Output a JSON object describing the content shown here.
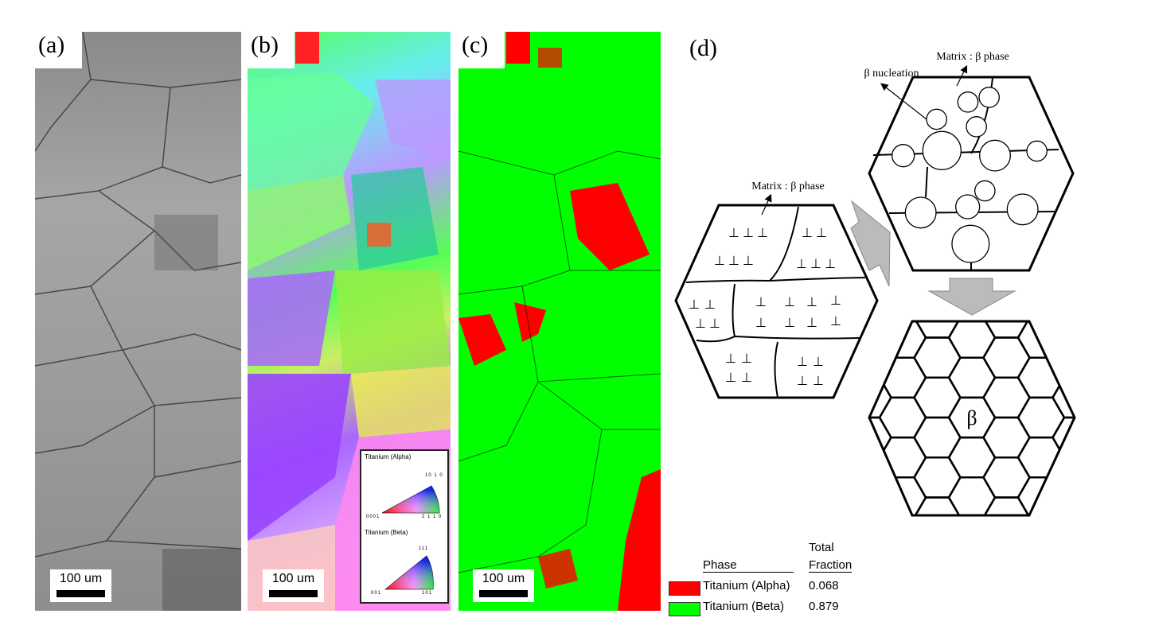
{
  "panels": {
    "a": {
      "label": "(a)",
      "scale": "100 um"
    },
    "b": {
      "label": "(b)",
      "scale": "100 um"
    },
    "c": {
      "label": "(c)",
      "scale": "100 um"
    },
    "d": {
      "label": "(d)"
    }
  },
  "ipf_legend": {
    "alpha": {
      "title": "Titanium (Alpha)",
      "top": "10 1 0",
      "left": "0001",
      "right": "2 1 1 0"
    },
    "beta": {
      "title": "Titanium (Beta)",
      "top": "111",
      "left": "001",
      "right": "101"
    }
  },
  "phase_legend": {
    "header_phase": "Phase",
    "header_fraction_1": "Total",
    "header_fraction_2": "Fraction",
    "rows": [
      {
        "name": "Titanium (Alpha)",
        "fraction": "0.068",
        "color": "#ff0000"
      },
      {
        "name": "Titanium (Beta)",
        "fraction": "0.879",
        "color": "#00ff00"
      }
    ]
  },
  "schematic": {
    "matrix_left": "Matrix : β phase",
    "matrix_top": "Matrix : β phase",
    "nucleation": "β nucleation",
    "beta_center": "β",
    "dislocation_symbol": "⊥"
  }
}
